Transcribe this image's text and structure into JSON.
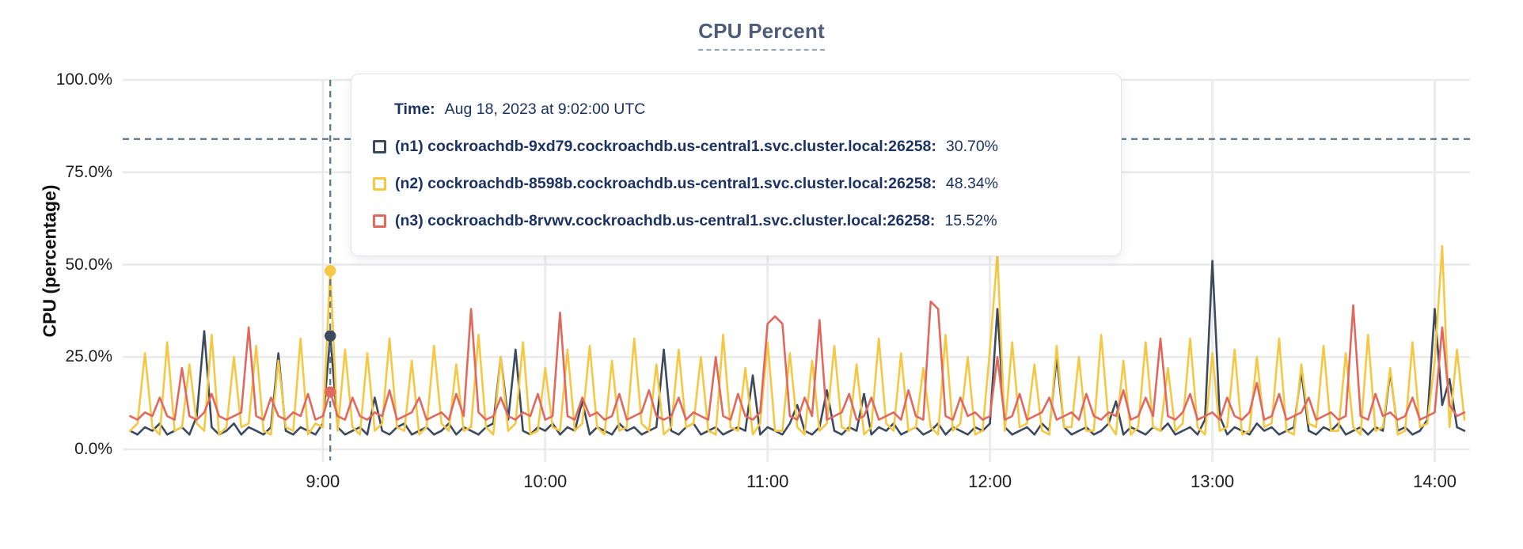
{
  "title": {
    "text": "CPU Percent"
  },
  "y_axis": {
    "title": "CPU (percentage)",
    "ticks": [
      {
        "value": 0,
        "label": "0.0%"
      },
      {
        "value": 25,
        "label": "25.0%"
      },
      {
        "value": 50,
        "label": "50.0%"
      },
      {
        "value": 75,
        "label": "75.0%"
      },
      {
        "value": 100,
        "label": "100.0%"
      }
    ]
  },
  "x_axis": {
    "ticks": [
      {
        "value_min": 540,
        "label": "9:00"
      },
      {
        "value_min": 600,
        "label": "10:00"
      },
      {
        "value_min": 660,
        "label": "11:00"
      },
      {
        "value_min": 720,
        "label": "12:00"
      },
      {
        "value_min": 780,
        "label": "13:00"
      },
      {
        "value_min": 840,
        "label": "14:00"
      }
    ]
  },
  "tooltip": {
    "time_label": "Time:",
    "time_value": "Aug 18, 2023 at 9:02:00 UTC",
    "rows": [
      {
        "label": "(n1) cockroachdb-9xd79.cockroachdb.us-central1.svc.cluster.local:26258:",
        "value": "30.70%",
        "color": "#3d4a5e"
      },
      {
        "label": "(n2) cockroachdb-8598b.cockroachdb.us-central1.svc.cluster.local:26258:",
        "value": "48.34%",
        "color": "#f5c843"
      },
      {
        "label": "(n3) cockroachdb-8rvwv.cockroachdb.us-central1.svc.cluster.local:26258:",
        "value": "15.52%",
        "color": "#e0695f"
      }
    ]
  },
  "colors": {
    "background": "#ffffff",
    "gridline": "#ebebeb",
    "crosshair": "#5e7384",
    "title": "#4d5d78",
    "title_underline": "#97a1ae",
    "axis_text": "#1f1f1f",
    "tooltip_text": "#1b3262"
  },
  "chart_data": {
    "type": "line",
    "title": "CPU Percent",
    "xlabel": "",
    "ylabel": "CPU (percentage)",
    "ylim": [
      0,
      100
    ],
    "grid": true,
    "x_unit": "minutes_since_midnight_UTC",
    "x_start_min": 488,
    "x_step_min": 2,
    "x_tick_labels": [
      "9:00",
      "10:00",
      "11:00",
      "12:00",
      "13:00",
      "14:00"
    ],
    "y_tick_labels": [
      "0.0%",
      "25.0%",
      "50.0%",
      "75.0%",
      "100.0%"
    ],
    "hover": {
      "time_min": 542,
      "index": 27,
      "time_text": "Aug 18, 2023 at 9:02:00 UTC",
      "crosshair_y_pct": 84,
      "values": {
        "n1": 30.7,
        "n2": 48.34,
        "n3": 15.52
      }
    },
    "series": [
      {
        "id": "n1",
        "name": "(n1) cockroachdb-9xd79.cockroachdb.us-central1.svc.cluster.local:26258",
        "color": "#3d4a5e",
        "hover_value_pct": 30.7,
        "values": [
          5,
          4,
          6,
          5,
          7,
          4,
          5,
          6,
          4,
          9,
          32,
          6,
          4,
          5,
          7,
          4,
          6,
          5,
          4,
          6,
          26,
          5,
          4,
          6,
          5,
          4,
          7,
          30.7,
          6,
          4,
          5,
          6,
          4,
          14,
          5,
          4,
          6,
          7,
          4,
          5,
          6,
          4,
          5,
          7,
          4,
          6,
          5,
          4,
          6,
          7,
          25,
          8,
          27,
          5,
          4,
          6,
          5,
          7,
          4,
          6,
          5,
          13,
          4,
          6,
          5,
          4,
          7,
          5,
          6,
          4,
          5,
          6,
          27,
          5,
          4,
          6,
          7,
          4,
          5,
          6,
          4,
          5,
          6,
          5,
          20,
          4,
          6,
          5,
          4,
          7,
          12,
          5,
          4,
          6,
          16,
          5,
          4,
          6,
          5,
          15,
          4,
          6,
          5,
          7,
          4,
          5,
          6,
          4,
          5,
          7,
          4,
          6,
          5,
          4,
          6,
          5,
          7,
          38,
          6,
          4,
          5,
          6,
          4,
          7,
          5,
          25,
          6,
          4,
          5,
          6,
          4,
          5,
          7,
          13,
          4,
          6,
          5,
          4,
          6,
          5,
          7,
          4,
          5,
          6,
          4,
          8,
          51,
          9,
          4,
          6,
          5,
          4,
          7,
          5,
          6,
          4,
          5,
          6,
          21,
          5,
          4,
          6,
          5,
          7,
          4,
          5,
          6,
          4,
          6,
          5,
          21,
          5,
          6,
          4,
          5,
          8,
          38,
          12,
          19,
          6,
          5
        ]
      },
      {
        "id": "n2",
        "name": "(n2) cockroachdb-8598b.cockroachdb.us-central1.svc.cluster.local:26258",
        "color": "#f5c843",
        "hover_value_pct": 48.34,
        "values": [
          5,
          7,
          26,
          6,
          4,
          29,
          5,
          6,
          23,
          7,
          5,
          31,
          4,
          6,
          25,
          6,
          7,
          28,
          5,
          4,
          24,
          6,
          5,
          30,
          4,
          7,
          6,
          48.34,
          5,
          27,
          6,
          4,
          26,
          5,
          7,
          30,
          6,
          5,
          24,
          4,
          6,
          28,
          7,
          5,
          23,
          5,
          6,
          31,
          6,
          4,
          25,
          5,
          7,
          29,
          4,
          5,
          22,
          6,
          5,
          27,
          5,
          7,
          28,
          6,
          4,
          24,
          5,
          6,
          30,
          7,
          5,
          23,
          4,
          6,
          27,
          6,
          7,
          25,
          5,
          4,
          31,
          6,
          5,
          22,
          4,
          7,
          29,
          5,
          5,
          26,
          6,
          4,
          24,
          5,
          7,
          28,
          6,
          5,
          23,
          4,
          6,
          30,
          7,
          5,
          26,
          5,
          6,
          22,
          6,
          4,
          31,
          5,
          7,
          25,
          4,
          5,
          27,
          53,
          5,
          29,
          6,
          7,
          23,
          5,
          4,
          28,
          6,
          6,
          25,
          5,
          5,
          31,
          7,
          4,
          24,
          4,
          6,
          29,
          6,
          5,
          22,
          5,
          7,
          30,
          6,
          4,
          26,
          5,
          6,
          27,
          4,
          5,
          25,
          6,
          7,
          30,
          5,
          4,
          23,
          7,
          6,
          28,
          5,
          5,
          26,
          6,
          4,
          31,
          5,
          6,
          22,
          4,
          5,
          29,
          6,
          7,
          24,
          55,
          6,
          27,
          8
        ]
      },
      {
        "id": "n3",
        "name": "(n3) cockroachdb-8rvwv.cockroachdb.us-central1.svc.cluster.local:26258",
        "color": "#e0695f",
        "hover_value_pct": 15.52,
        "values": [
          9,
          8,
          10,
          9,
          14,
          9,
          8,
          22,
          9,
          8,
          10,
          15,
          9,
          8,
          9,
          10,
          33,
          9,
          8,
          14,
          9,
          8,
          10,
          9,
          15,
          8,
          9,
          15.52,
          9,
          8,
          14,
          9,
          8,
          10,
          9,
          16,
          8,
          9,
          10,
          14,
          8,
          9,
          10,
          8,
          15,
          9,
          38,
          10,
          8,
          9,
          14,
          9,
          8,
          10,
          9,
          15,
          8,
          9,
          37,
          9,
          8,
          14,
          9,
          10,
          8,
          9,
          15,
          8,
          9,
          10,
          16,
          9,
          8,
          9,
          14,
          8,
          10,
          9,
          8,
          25,
          9,
          8,
          15,
          9,
          8,
          10,
          34,
          36,
          34,
          9,
          8,
          14,
          9,
          35,
          8,
          9,
          10,
          15,
          8,
          9,
          14,
          8,
          9,
          10,
          8,
          16,
          9,
          8,
          40,
          38,
          9,
          8,
          14,
          9,
          10,
          8,
          9,
          25,
          8,
          9,
          15,
          8,
          9,
          10,
          14,
          8,
          9,
          10,
          8,
          15,
          9,
          8,
          10,
          9,
          16,
          8,
          9,
          14,
          9,
          30,
          9,
          8,
          10,
          15,
          8,
          9,
          10,
          8,
          14,
          9,
          8,
          10,
          18,
          8,
          9,
          15,
          8,
          9,
          10,
          14,
          8,
          9,
          10,
          8,
          9,
          39,
          9,
          8,
          15,
          9,
          10,
          8,
          9,
          14,
          8,
          9,
          10,
          33,
          12,
          9,
          10
        ]
      }
    ]
  }
}
